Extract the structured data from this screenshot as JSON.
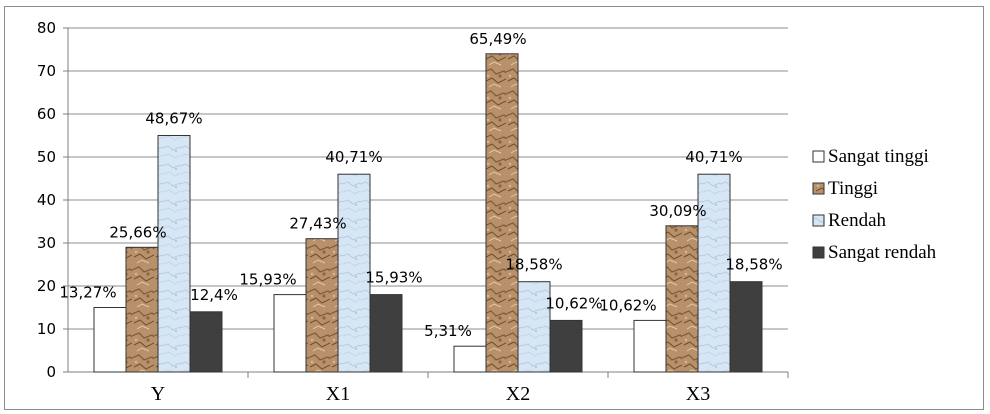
{
  "chart_data": {
    "type": "bar",
    "categories": [
      "Y",
      "X1",
      "X2",
      "X3"
    ],
    "ylim": [
      0,
      80
    ],
    "yticks": [
      "0",
      "10",
      "20",
      "30",
      "40",
      "50",
      "60",
      "70",
      "80"
    ],
    "grid": true,
    "legend_position": "right",
    "series": [
      {
        "name": "Sangat tinggi",
        "values": [
          15,
          18,
          6,
          12
        ],
        "labels": [
          "13,27%",
          "15,93%",
          "5,31%",
          "10,62%"
        ],
        "color": "#ffffff",
        "pattern": "none"
      },
      {
        "name": "Tinggi",
        "values": [
          29,
          31,
          74,
          34
        ],
        "labels": [
          "25,66%",
          "27,43%",
          "65,49%",
          "30,09%"
        ],
        "color": "#b8916a",
        "pattern": "stone-texture"
      },
      {
        "name": "Rendah",
        "values": [
          55,
          46,
          21,
          46
        ],
        "labels": [
          "48,67%",
          "40,71%",
          "18,58%",
          "40,71%"
        ],
        "color": "#d7e6f4",
        "pattern": "light-blue-texture"
      },
      {
        "name": "Sangat rendah",
        "values": [
          14,
          18,
          12,
          21
        ],
        "labels": [
          "12,4%",
          "15,93%",
          "10,62%",
          "18,58%"
        ],
        "color": "#3f3f3f",
        "pattern": "none"
      }
    ]
  }
}
